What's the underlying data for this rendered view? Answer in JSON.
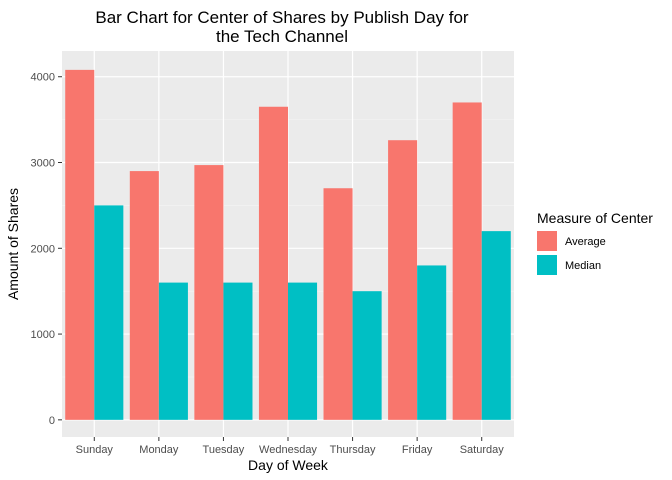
{
  "chart_data": {
    "type": "bar",
    "title_lines": [
      "Bar Chart for Center of Shares by Publish Day for",
      "the Tech Channel"
    ],
    "xlabel": "Day of Week",
    "ylabel": "Amount of Shares",
    "categories": [
      "Sunday",
      "Monday",
      "Tuesday",
      "Wednesday",
      "Thursday",
      "Friday",
      "Saturday"
    ],
    "series": [
      {
        "name": "Average",
        "color": "#F8766D",
        "values": [
          4080,
          2900,
          2970,
          3650,
          2700,
          3260,
          3700
        ]
      },
      {
        "name": "Median",
        "color": "#00BFC4",
        "values": [
          2500,
          1600,
          1600,
          1600,
          1500,
          1800,
          2200
        ]
      }
    ],
    "yticks": [
      0,
      1000,
      2000,
      3000,
      4000
    ],
    "ylim": [
      -200,
      4300
    ],
    "grid": true,
    "panel_background": "#EBEBEB",
    "legend": {
      "title": "Measure of Center",
      "position": "right"
    }
  }
}
